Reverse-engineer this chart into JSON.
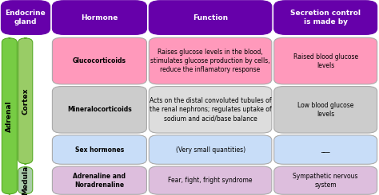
{
  "bg_color": "#ffffff",
  "header_color": "#6600aa",
  "header_text_color": "#ffffff",
  "col_headers": [
    "Endocrine\ngland",
    "Hormone",
    "Function",
    "Secretion control\nis made by"
  ],
  "side_bar_color": "#77cc44",
  "cortex_bar_color": "#99cc66",
  "medula_bar_color": "#aaccaa",
  "rows": [
    {
      "hormone": "Glucocorticoids",
      "function": "Raises glucose levels in the blood,\nstimulates glucose production by cells,\nreduce the inflamatory response",
      "secretion": "Raised blood glucose\nlevels",
      "row_color": "#ff99bb",
      "function_color": "#ff99bb"
    },
    {
      "hormone": "Mineralocorticoids",
      "function": "Acts on the distal convoluted tubules of\nthe renal nephrons; regulates uptake of\nsodium and acid/base balance",
      "secretion": "Low blood glucose\nlevels",
      "row_color": "#cccccc",
      "function_color": "#dddddd"
    },
    {
      "hormone": "Sex hormones",
      "function": "(Very small quantities)",
      "secretion": "___",
      "row_color": "#c8ddf8",
      "function_color": "#c8ddf8"
    }
  ],
  "medula_row": {
    "hormone": "Adrenaline and\nNoradrenaline",
    "function": "Fear, fight, fright syndrome",
    "secretion": "Sympathetic nervous\nsystem",
    "row_color": "#ddbedd",
    "function_color": "#ddbedd"
  },
  "font_size_header": 6.5,
  "font_size_cell": 5.5,
  "font_size_side": 6.5
}
